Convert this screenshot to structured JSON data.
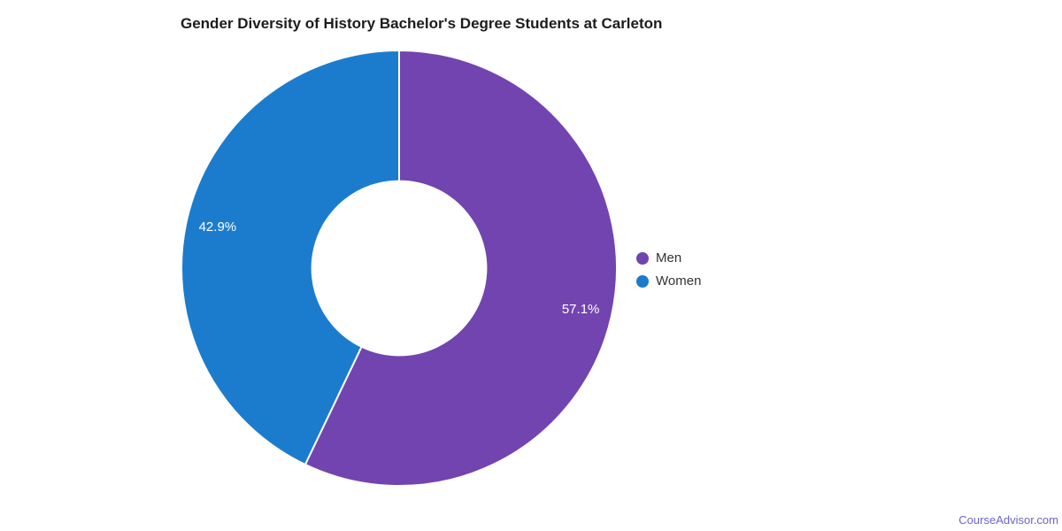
{
  "page": {
    "background": "#ffffff"
  },
  "chart_data": {
    "type": "pie",
    "subtype": "donut",
    "title": "Gender Diversity of History Bachelor's Degree Students at Carleton",
    "categories": [
      "Men",
      "Women"
    ],
    "values": [
      57.1,
      42.9
    ],
    "slice_labels": [
      "57.1%",
      "42.9%"
    ],
    "colors": [
      "#7244af",
      "#1b7cce"
    ],
    "start_angle_deg": 0,
    "direction": "clockwise",
    "inner_radius_ratio": 0.4,
    "separator_color": "#ffffff",
    "slice_label_color": "#ffffff",
    "legend_position": "right",
    "legend_text_color": "#333333"
  },
  "footer": {
    "brand": "CourseAdvisor.com",
    "brand_color": "#6e64c8"
  }
}
